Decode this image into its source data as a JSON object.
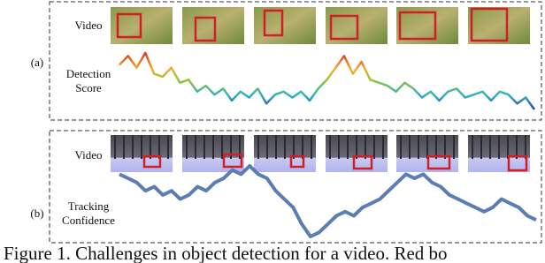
{
  "panel_a": {
    "label": "(a)",
    "video_label": "Video",
    "score_label": [
      "Detection",
      "Score"
    ],
    "detection_score": [
      0.75,
      0.9,
      0.7,
      0.95,
      0.6,
      0.55,
      0.7,
      0.45,
      0.5,
      0.3,
      0.4,
      0.25,
      0.35,
      0.15,
      0.3,
      0.2,
      0.35,
      0.1,
      0.25,
      0.3,
      0.2,
      0.3,
      0.15,
      0.35,
      0.5,
      0.7,
      0.9,
      0.6,
      0.8,
      0.5,
      0.45,
      0.4,
      0.3,
      0.45,
      0.35,
      0.2,
      0.3,
      0.15,
      0.3,
      0.35,
      0.2,
      0.25,
      0.3,
      0.15,
      0.3,
      0.25,
      0.1,
      0.2,
      0.0
    ]
  },
  "panel_b": {
    "label": "(b)",
    "video_label": "Video",
    "score_label": [
      "Tracking",
      "Confidence"
    ],
    "tracking_confidence": [
      0.8,
      0.75,
      0.7,
      0.6,
      0.65,
      0.55,
      0.6,
      0.5,
      0.55,
      0.65,
      0.6,
      0.7,
      0.75,
      0.85,
      0.8,
      0.9,
      0.8,
      0.75,
      0.6,
      0.5,
      0.4,
      0.2,
      0.05,
      0.1,
      0.2,
      0.3,
      0.35,
      0.3,
      0.4,
      0.45,
      0.5,
      0.6,
      0.7,
      0.8,
      0.75,
      0.8,
      0.7,
      0.65,
      0.55,
      0.5,
      0.45,
      0.4,
      0.35,
      0.4,
      0.5,
      0.45,
      0.4,
      0.3,
      0.25
    ]
  },
  "caption": "Figure 1. Challenges in object detection for a video. Red bo"
}
